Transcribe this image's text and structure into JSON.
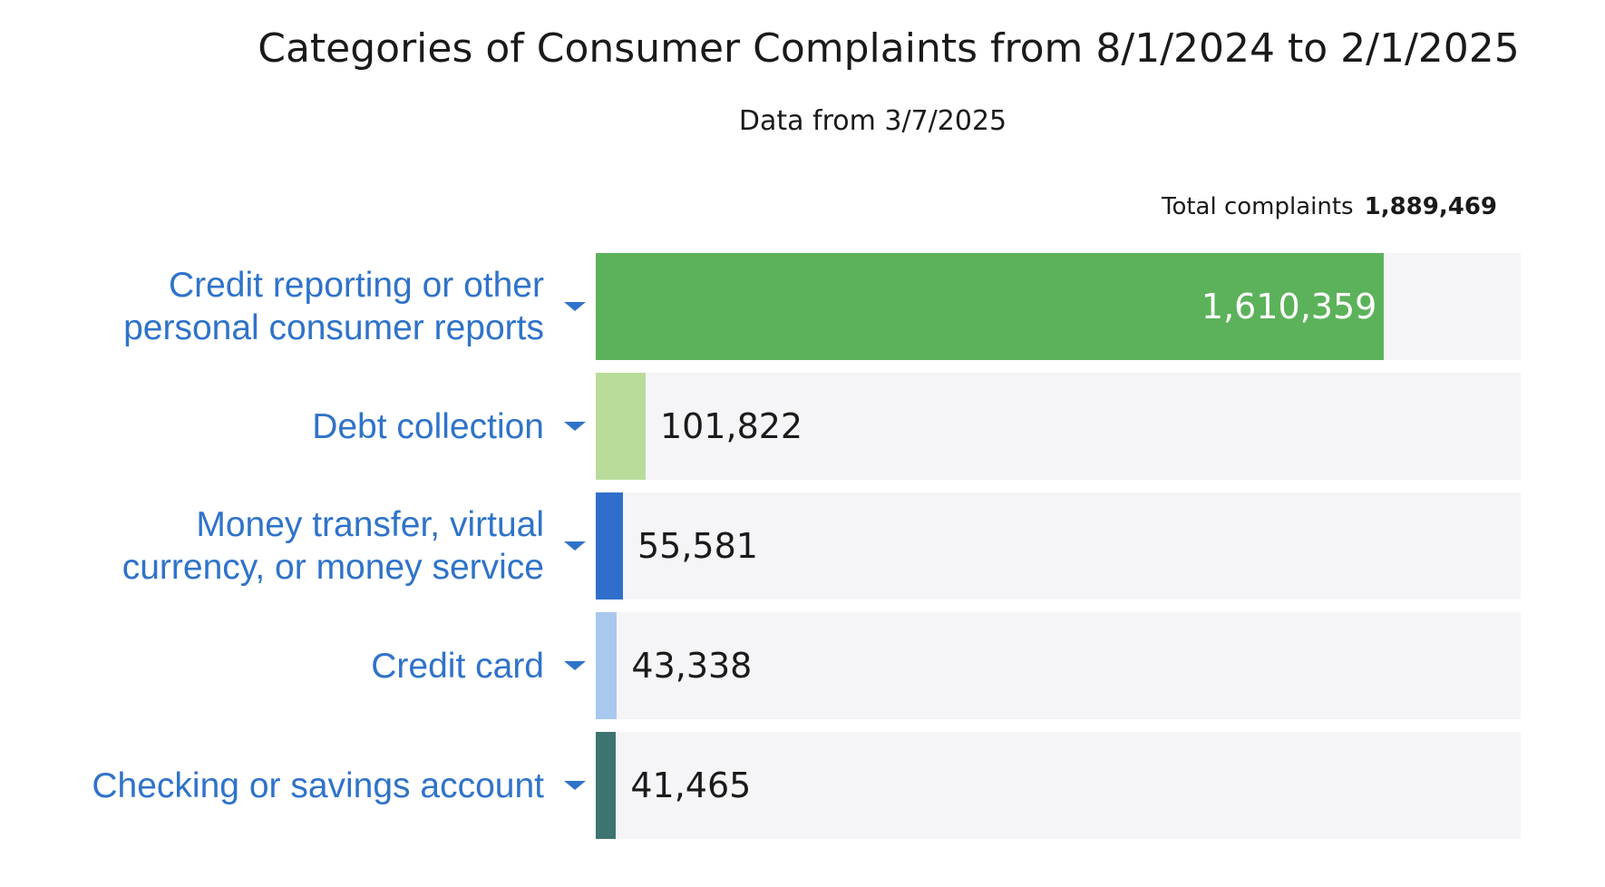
{
  "chart_data": {
    "type": "bar",
    "orientation": "horizontal",
    "title": "Categories of Consumer Complaints from 8/1/2024 to 2/1/2025",
    "subtitle": "Data from 3/7/2025",
    "total_label": "Total complaints",
    "total": {
      "value": 1889469,
      "label": "1,889,469"
    },
    "categories": [
      "Credit reporting or other personal consumer reports",
      "Debt collection",
      "Money transfer, virtual currency, or money service",
      "Credit card",
      "Checking or savings account"
    ],
    "values": [
      1610359,
      101822,
      55581,
      43338,
      41465
    ],
    "value_labels": [
      "1,610,359",
      "101,822",
      "55,581",
      "43,338",
      "41,465"
    ],
    "colors": [
      "#5cb25a",
      "#b9dc9a",
      "#2f6fcb",
      "#a9c8ee",
      "#3e7470"
    ],
    "xlim": [
      0,
      1889469
    ]
  }
}
